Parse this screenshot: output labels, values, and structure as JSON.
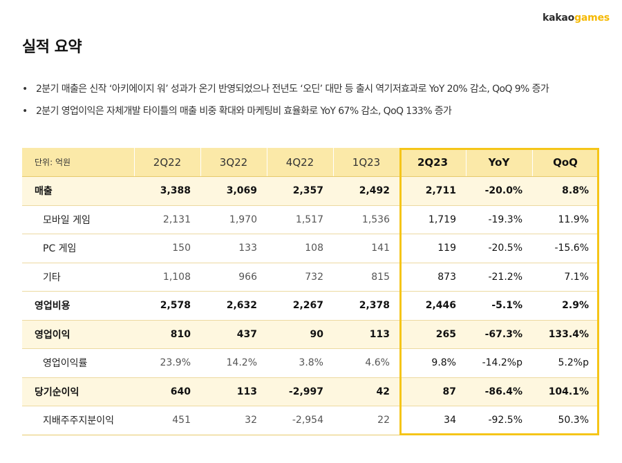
{
  "logo": {
    "text_main": "kakao",
    "text_accent": "games"
  },
  "page_title": "실적 요약",
  "bullets": [
    "2분기 매출은 신작 ‘아키에이지 워’ 성과가 온기 반영되었으나 전년도 ‘오딘’ 대만 등 출시 역기저효과로 YoY 20% 감소, QoQ 9% 증가",
    "2분기 영업이익은 자체개발 타이틀의 매출 비중 확대와 마케팅비 효율화로 YoY 67% 감소, QoQ 133% 증가"
  ],
  "table": {
    "unit_label": "단위: 억원",
    "headers": [
      "2Q22",
      "3Q22",
      "4Q22",
      "1Q23",
      "2Q23",
      "YoY",
      "QoQ"
    ],
    "rows": [
      {
        "label": "매출",
        "values": [
          "3,388",
          "3,069",
          "2,357",
          "2,492",
          "2,711",
          "-20.0%",
          "8.8%"
        ]
      },
      {
        "label": "모바일 게임",
        "values": [
          "2,131",
          "1,970",
          "1,517",
          "1,536",
          "1,719",
          "-19.3%",
          "11.9%"
        ]
      },
      {
        "label": "PC 게임",
        "values": [
          "150",
          "133",
          "108",
          "141",
          "119",
          "-20.5%",
          "-15.6%"
        ]
      },
      {
        "label": "기타",
        "values": [
          "1,108",
          "966",
          "732",
          "815",
          "873",
          "-21.2%",
          "7.1%"
        ]
      },
      {
        "label": "영업비용",
        "values": [
          "2,578",
          "2,632",
          "2,267",
          "2,378",
          "2,446",
          "-5.1%",
          "2.9%"
        ]
      },
      {
        "label": "영업이익",
        "values": [
          "810",
          "437",
          "90",
          "113",
          "265",
          "-67.3%",
          "133.4%"
        ]
      },
      {
        "label": "영업이익률",
        "values": [
          "23.9%",
          "14.2%",
          "3.8%",
          "4.6%",
          "9.8%",
          "-14.2%p",
          "5.2%p"
        ]
      },
      {
        "label": "당기순이익",
        "values": [
          "640",
          "113",
          "-2,997",
          "42",
          "87",
          "-86.4%",
          "104.1%"
        ]
      },
      {
        "label": "지배주주지분이익",
        "values": [
          "451",
          "32",
          "-2,954",
          "22",
          "34",
          "-92.5%",
          "50.3%"
        ]
      }
    ]
  },
  "colors": {
    "accent": "#f5c518",
    "header_bg": "#fbe9a8",
    "shade_bg": "#fef7df"
  }
}
